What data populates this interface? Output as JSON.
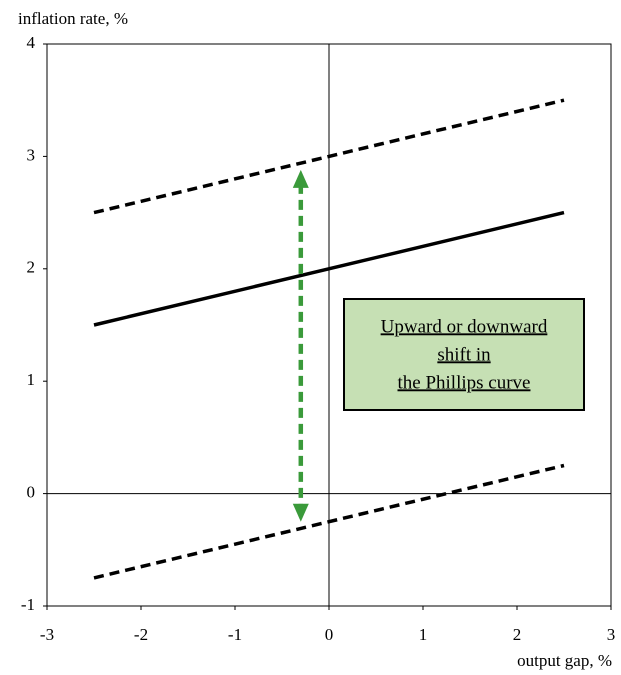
{
  "chart_data": {
    "type": "line",
    "xlabel": "output gap, %",
    "ylabel": "inflation rate, %",
    "xlim": [
      -3,
      3
    ],
    "xticks": [
      -3,
      -2,
      -1,
      0,
      1,
      2,
      3
    ],
    "ylim": [
      -1,
      4
    ],
    "yticks": [
      -1,
      0,
      1,
      2,
      3,
      4
    ],
    "grid": false,
    "zero_lines": true,
    "series": [
      {
        "x": [
          -2.5,
          2.5
        ],
        "values": [
          1.5,
          2.5
        ],
        "color": "#000000",
        "dash": "solid"
      },
      {
        "x": [
          -2.5,
          2.5
        ],
        "values": [
          2.5,
          3.5
        ],
        "color": "#000000",
        "dash": "dashed"
      },
      {
        "x": [
          -2.5,
          2.5
        ],
        "values": [
          -0.75,
          0.25
        ],
        "color": "#000000",
        "dash": "dashed"
      }
    ],
    "arrow": {
      "x": -0.3,
      "values": [
        2.88,
        -0.25
      ],
      "color": "#3a9a3a"
    },
    "annotation": {
      "lines": [
        "Upward or downward",
        "shift in",
        "the Phillips curve"
      ],
      "fill": "#c6e0b4"
    }
  }
}
